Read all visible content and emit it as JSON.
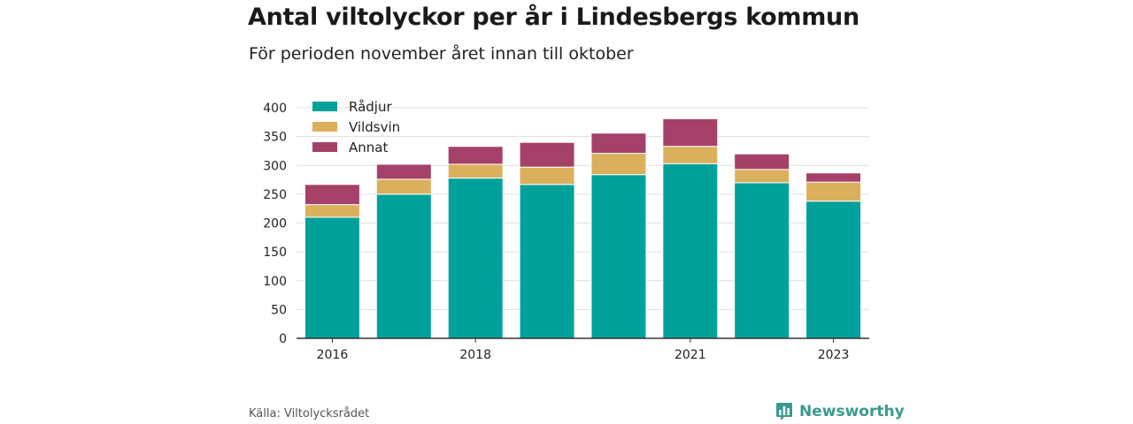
{
  "title": "Antal viltolyckor per år i Lindesbergs kommun",
  "subtitle": "För perioden november året innan till oktober",
  "source": "Källa: Viltolycksrådet",
  "brand": {
    "name": "Newsworthy",
    "icon": "newsworthy-logo-icon",
    "color": "#3a9a8e"
  },
  "chart_data": {
    "type": "bar",
    "stacked": true,
    "categories": [
      "2016",
      "2017",
      "2018",
      "2019",
      "2020",
      "2021",
      "2022",
      "2023"
    ],
    "x_tick_labels": [
      "2016",
      "",
      "2018",
      "",
      "",
      "2021",
      "",
      "2023"
    ],
    "series": [
      {
        "name": "Rådjur",
        "color": "#00a19a",
        "values": [
          210,
          250,
          278,
          267,
          284,
          303,
          270,
          238
        ]
      },
      {
        "name": "Vildsvin",
        "color": "#dbb05c",
        "values": [
          22,
          26,
          24,
          30,
          37,
          30,
          23,
          33
        ]
      },
      {
        "name": "Annat",
        "color": "#a54168",
        "values": [
          35,
          26,
          31,
          43,
          35,
          48,
          27,
          16
        ]
      }
    ],
    "ylim": [
      0,
      400
    ],
    "yticks": [
      0,
      50,
      100,
      150,
      200,
      250,
      300,
      350,
      400
    ],
    "grid": true,
    "legend_position": "top-left"
  }
}
